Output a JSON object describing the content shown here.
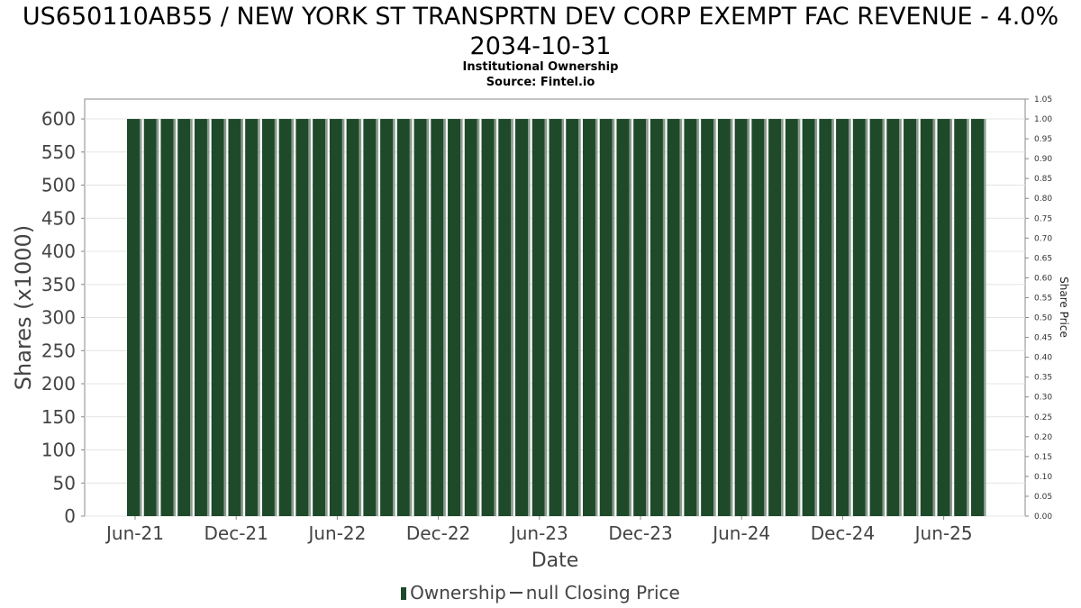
{
  "chart_data": {
    "type": "bar",
    "title": "US650110AB55 / NEW YORK ST TRANSPRTN DEV CORP EXEMPT FAC REVENUE - 4.0% 2034-10-31",
    "subtitles": [
      "Institutional Ownership",
      "Source: Fintel.io"
    ],
    "xlabel": "Date",
    "ylabel": "Shares (x1000)",
    "y2label": "Share Price",
    "x_tick_labels": [
      "Jun-21",
      "Dec-21",
      "Jun-22",
      "Dec-22",
      "Jun-23",
      "Dec-23",
      "Jun-24",
      "Dec-24",
      "Jun-25"
    ],
    "y_ticks": [
      0,
      50,
      100,
      150,
      200,
      250,
      300,
      350,
      400,
      450,
      500,
      550,
      600
    ],
    "y2_ticks": [
      "0.00",
      "0.05",
      "0.10",
      "0.15",
      "0.20",
      "0.25",
      "0.30",
      "0.35",
      "0.40",
      "0.45",
      "0.50",
      "0.55",
      "0.60",
      "0.65",
      "0.70",
      "0.75",
      "0.80",
      "0.85",
      "0.90",
      "0.95",
      "1.00",
      "1.05"
    ],
    "ylim": [
      0,
      600
    ],
    "y2lim": [
      0,
      1.05
    ],
    "grid": true,
    "legend_position": "bottom",
    "series": [
      {
        "name": "Ownership",
        "color": "#1e4a2a",
        "values": [
          600,
          600,
          600,
          600,
          600,
          600,
          600,
          600,
          600,
          600,
          600,
          600,
          600,
          600,
          600,
          600,
          600,
          600,
          600,
          600,
          600,
          600,
          600,
          600,
          600,
          600,
          600,
          600,
          600,
          600,
          600,
          600,
          600,
          600,
          600,
          600,
          600,
          600,
          600,
          600,
          600,
          600,
          600,
          600,
          600,
          600,
          600,
          600,
          600,
          600,
          600
        ]
      },
      {
        "name": "null Closing Price",
        "color": "#444444",
        "values": []
      }
    ]
  }
}
